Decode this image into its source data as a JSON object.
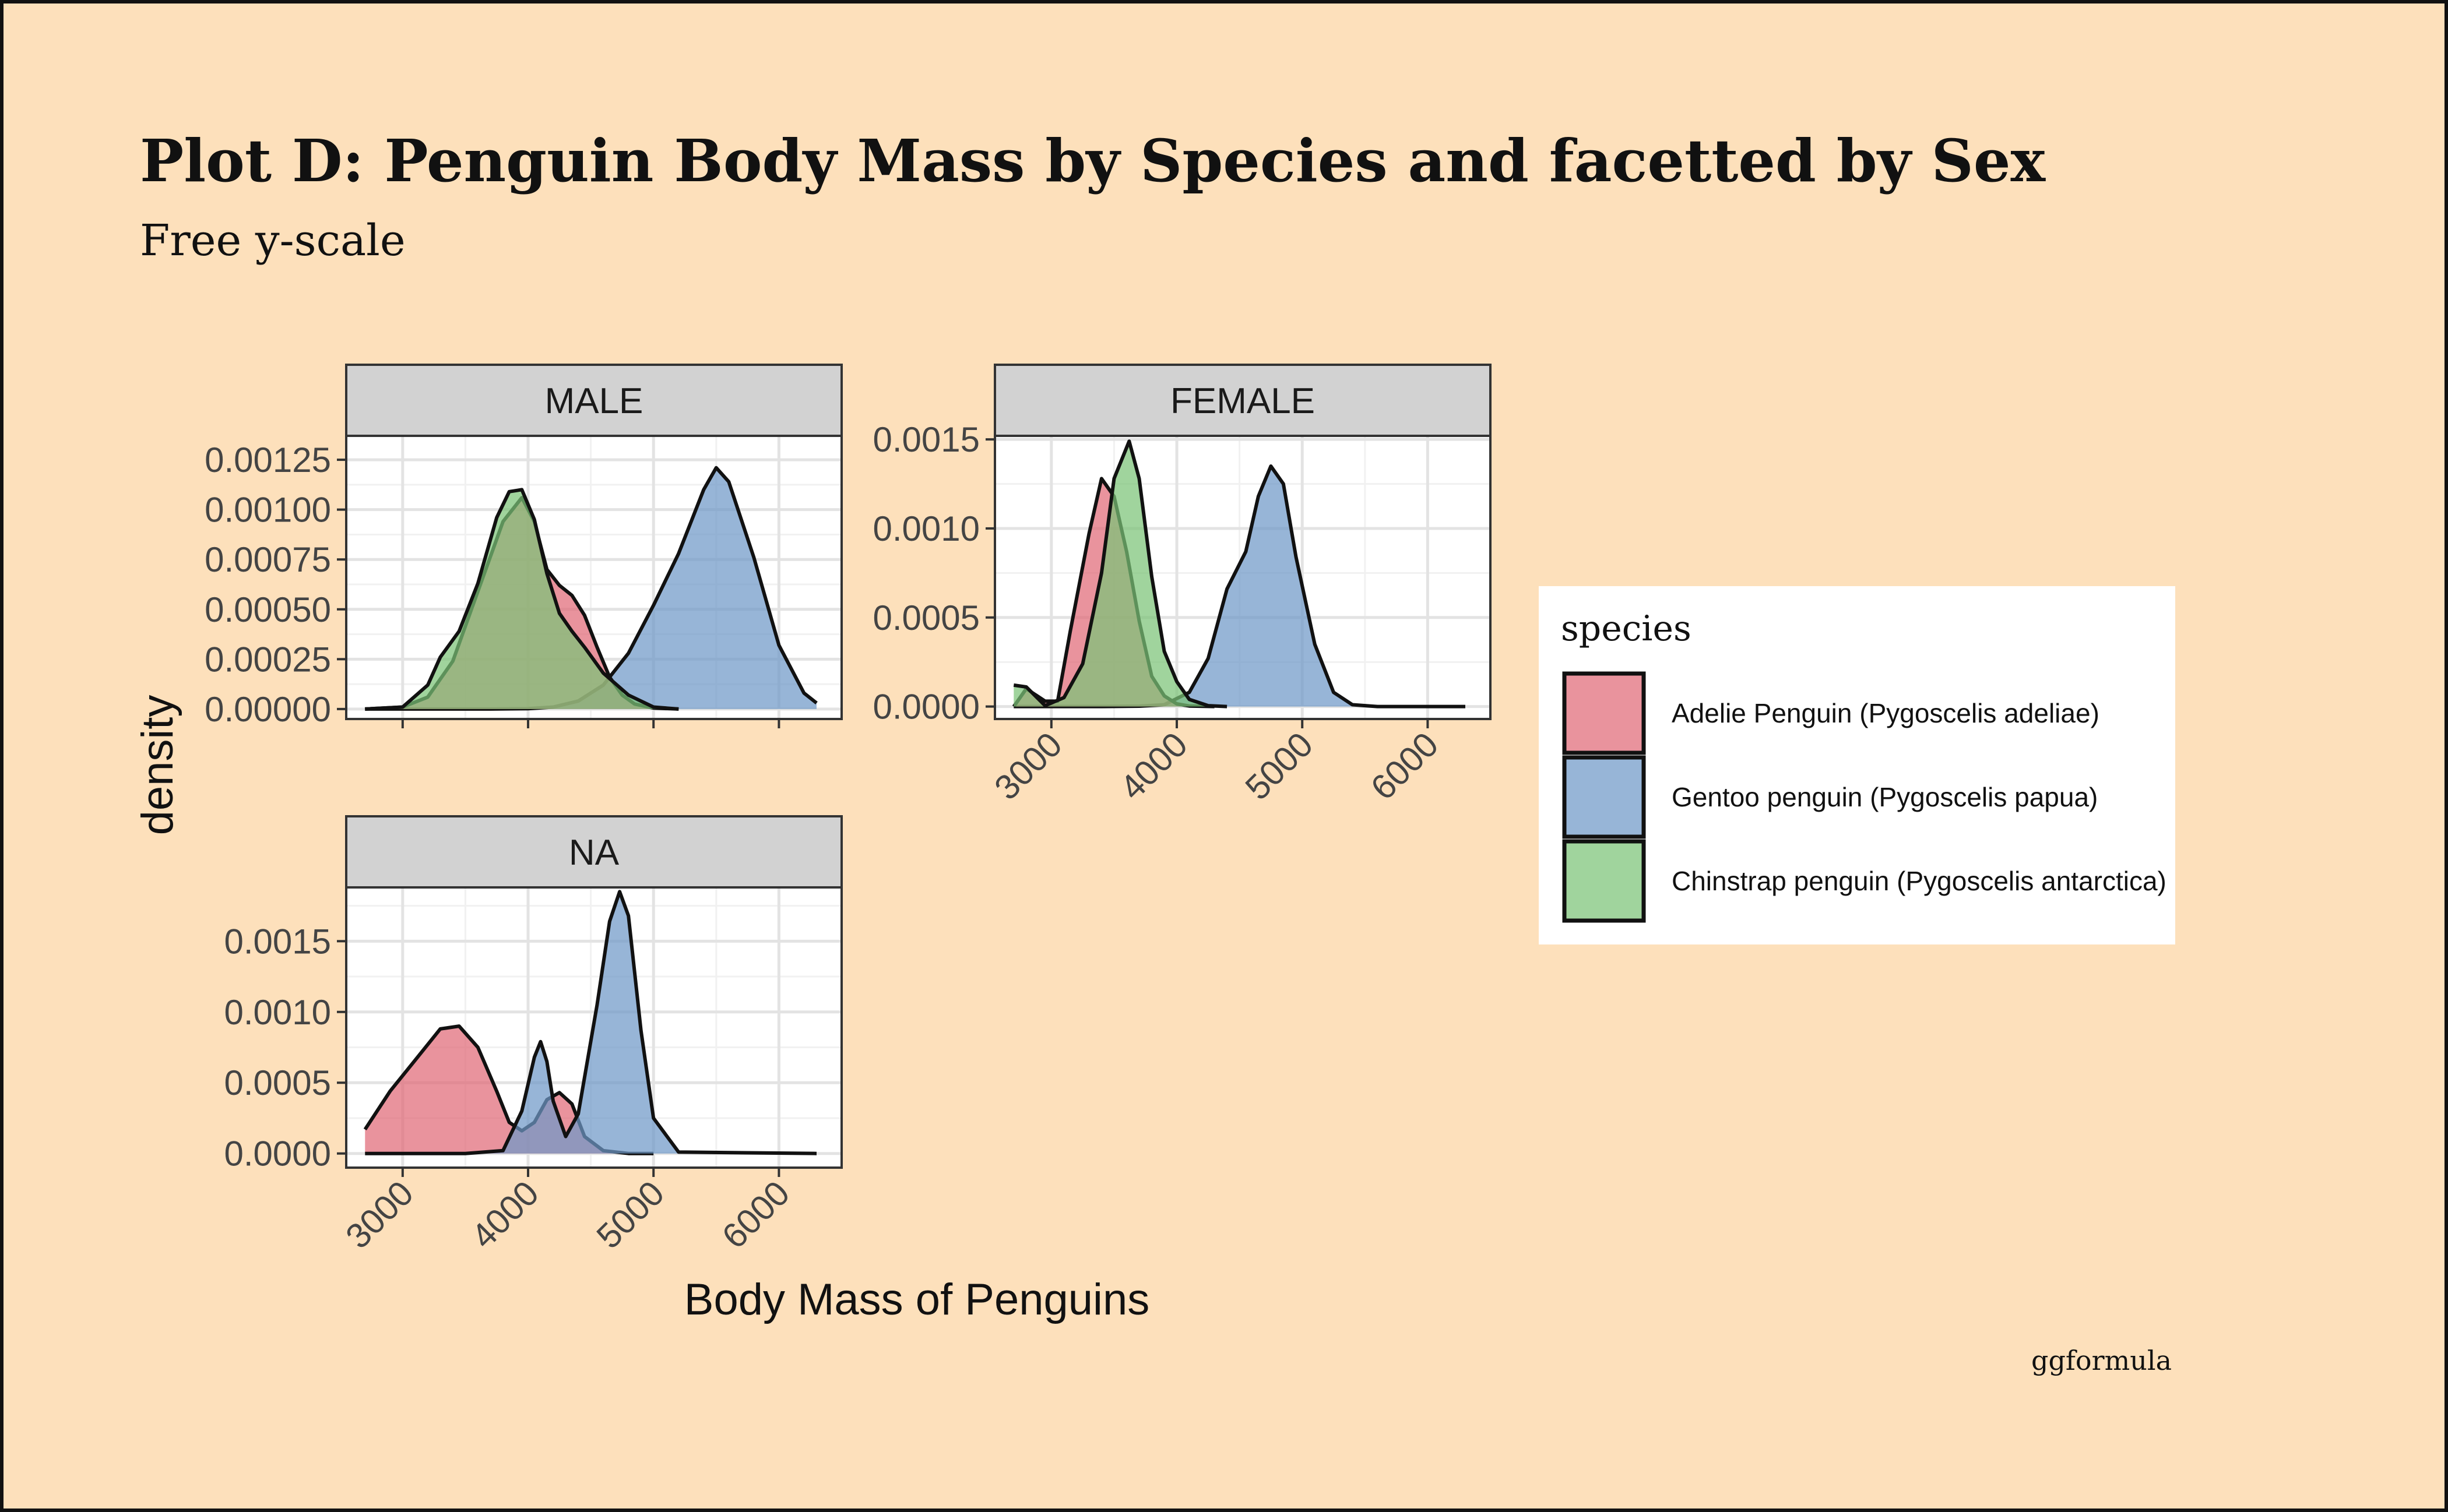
{
  "chart_data": {
    "type": "area",
    "kind": "density",
    "title": "Plot D: Penguin Body Mass by Species and facetted by Sex",
    "subtitle": "Free y-scale",
    "xlabel": "Body Mass of Penguins",
    "ylabel": "density",
    "caption": "ggformula",
    "xlim": [
      2550,
      6500
    ],
    "x_ticks": [
      "3000",
      "4000",
      "5000",
      "6000"
    ],
    "x_tick_values": [
      3000,
      4000,
      5000,
      6000
    ],
    "legend": {
      "title": "species",
      "position": "right",
      "entries": [
        {
          "label": "Adelie Penguin (Pygoscelis adeliae)",
          "color": "#e06a77"
        },
        {
          "label": "Gentoo penguin (Pygoscelis papua)",
          "color": "#6f98c8"
        },
        {
          "label": "Chinstrap penguin (Pygoscelis antarctica)",
          "color": "#7cc477"
        }
      ]
    },
    "panels": [
      {
        "strip": "MALE",
        "ylim": [
          -5e-05,
          0.00137
        ],
        "y_ticks": [
          "0.00000",
          "0.00025",
          "0.00050",
          "0.00075",
          "0.00100",
          "0.00125"
        ],
        "y_tick_values": [
          0,
          0.00025,
          0.0005,
          0.00075,
          0.001,
          0.00125
        ],
        "series": [
          {
            "name": "Gentoo penguin (Pygoscelis papua)",
            "color": "#6f98c8",
            "x": [
              2700,
              3300,
              3700,
              4000,
              4200,
              4400,
              4600,
              4800,
              5000,
              5200,
              5400,
              5500,
              5600,
              5800,
              6000,
              6200,
              6300
            ],
            "y": [
              0,
              0,
              0,
              2e-06,
              1e-05,
              4e-05,
              0.00012,
              0.00028,
              0.00052,
              0.00078,
              0.0011,
              0.00121,
              0.00114,
              0.00076,
              0.00032,
              8e-05,
              3e-05
            ]
          },
          {
            "name": "Adelie Penguin (Pygoscelis adeliae)",
            "color": "#e06a77",
            "x": [
              2700,
              3000,
              3200,
              3400,
              3600,
              3800,
              3950,
              4050,
              4150,
              4250,
              4350,
              4450,
              4550,
              4650,
              4750,
              4850,
              5000,
              5200
            ],
            "y": [
              0,
              1e-05,
              6e-05,
              0.00024,
              0.00059,
              0.00094,
              0.00106,
              0.00094,
              0.0007,
              0.00062,
              0.00057,
              0.00047,
              0.00031,
              0.00016,
              7e-05,
              2.5e-05,
              5e-06,
              0
            ]
          },
          {
            "name": "Chinstrap penguin (Pygoscelis antarctica)",
            "color": "#7cc477",
            "x": [
              2700,
              3000,
              3200,
              3300,
              3450,
              3600,
              3750,
              3850,
              3950,
              4050,
              4150,
              4250,
              4350,
              4450,
              4600,
              4800,
              5000,
              5200
            ],
            "y": [
              0,
              1e-05,
              0.00012,
              0.00026,
              0.00039,
              0.00063,
              0.00096,
              0.00109,
              0.0011,
              0.00095,
              0.00068,
              0.00048,
              0.00039,
              0.00031,
              0.00018,
              7e-05,
              1e-05,
              0
            ]
          }
        ]
      },
      {
        "strip": "FEMALE",
        "ylim": [
          -7e-05,
          0.00152
        ],
        "y_ticks": [
          "0.0000",
          "0.0005",
          "0.0010",
          "0.0015"
        ],
        "y_tick_values": [
          0,
          0.0005,
          0.001,
          0.0015
        ],
        "series": [
          {
            "name": "Gentoo penguin (Pygoscelis papua)",
            "color": "#6f98c8",
            "x": [
              2700,
              3400,
              3700,
              3900,
              4100,
              4250,
              4400,
              4550,
              4650,
              4750,
              4850,
              4950,
              5100,
              5250,
              5400,
              5600,
              6300
            ],
            "y": [
              0,
              0,
              2e-06,
              1e-05,
              8e-05,
              0.00027,
              0.00066,
              0.00087,
              0.00118,
              0.00135,
              0.00125,
              0.00084,
              0.00035,
              8e-05,
              1e-05,
              0,
              0
            ]
          },
          {
            "name": "Adelie Penguin (Pygoscelis adeliae)",
            "color": "#e06a77",
            "x": [
              2700,
              2800,
              2950,
              3050,
              3150,
              3300,
              3400,
              3500,
              3600,
              3700,
              3800,
              3900,
              4000,
              4100,
              4300
            ],
            "y": [
              0,
              0.0001,
              3e-05,
              3e-05,
              0.00042,
              0.00097,
              0.00128,
              0.00118,
              0.00087,
              0.00048,
              0.00017,
              6e-05,
              1.5e-05,
              3e-06,
              0
            ]
          },
          {
            "name": "Chinstrap penguin (Pygoscelis antarctica)",
            "color": "#7cc477",
            "x": [
              2700,
              2800,
              2950,
              3100,
              3250,
              3400,
              3500,
              3620,
              3700,
              3800,
              3900,
              4000,
              4100,
              4250,
              4400
            ],
            "y": [
              0.00012,
              0.00011,
              5e-06,
              5e-05,
              0.00024,
              0.00075,
              0.00128,
              0.00149,
              0.00128,
              0.00073,
              0.00031,
              0.00014,
              4e-05,
              5e-06,
              0
            ]
          }
        ]
      },
      {
        "strip": "NA",
        "ylim": [
          -0.0001,
          0.00188
        ],
        "y_ticks": [
          "0.0000",
          "0.0005",
          "0.0010",
          "0.0015"
        ],
        "y_tick_values": [
          0,
          0.0005,
          0.001,
          0.0015
        ],
        "series": [
          {
            "name": "Adelie Penguin (Pygoscelis adeliae)",
            "color": "#e06a77",
            "x": [
              2700,
              2900,
              3100,
              3300,
              3450,
              3600,
              3750,
              3850,
              3950,
              4050,
              4150,
              4250,
              4350,
              4450,
              4600,
              4800,
              5000
            ],
            "y": [
              0.00017,
              0.00044,
              0.00066,
              0.00088,
              0.0009,
              0.00075,
              0.00044,
              0.00022,
              0.00016,
              0.00022,
              0.00038,
              0.00043,
              0.00035,
              0.00012,
              2e-05,
              0,
              0
            ]
          },
          {
            "name": "Gentoo penguin (Pygoscelis papua)",
            "color": "#6f98c8",
            "x": [
              2700,
              3500,
              3800,
              3950,
              4050,
              4100,
              4150,
              4200,
              4300,
              4400,
              4550,
              4650,
              4730,
              4800,
              4900,
              5000,
              5200,
              6300
            ],
            "y": [
              0,
              0,
              2e-05,
              0.0003,
              0.00068,
              0.00079,
              0.00065,
              0.00037,
              0.00012,
              0.00028,
              0.00105,
              0.00164,
              0.00185,
              0.00168,
              0.00087,
              0.00025,
              1e-05,
              0
            ]
          }
        ]
      }
    ]
  }
}
